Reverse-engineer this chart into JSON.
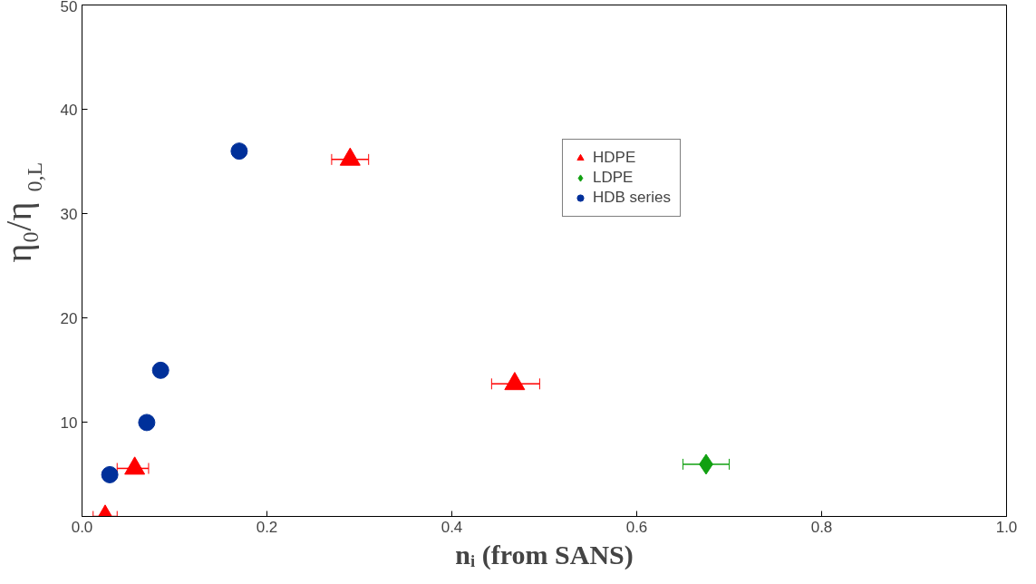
{
  "chart_data": {
    "type": "scatter",
    "xlabel": "nᵢ (from SANS)",
    "ylabel": "η₀/η$_{0,L}$",
    "xlim": [
      0,
      1
    ],
    "ylim": [
      1,
      50
    ],
    "xticks": [
      {
        "value": 0,
        "label": "0.0"
      },
      0.2,
      0.4,
      0.6,
      0.8,
      {
        "value": 1,
        "label": "1.0"
      }
    ],
    "yticks": [
      10,
      20,
      30,
      40,
      50
    ],
    "grid": false,
    "legend": "top right",
    "series": [
      {
        "name": "HDPE",
        "color": "#ff0000",
        "marker": "triangle",
        "x": [
          0.025,
          0.057,
          0.29,
          0.468
        ],
        "values": [
          1.0,
          5.6,
          35.2,
          13.7
        ],
        "xerrors": [
          [
            0.012,
            0.038
          ],
          [
            0.038,
            0.072
          ],
          [
            0.27,
            0.31
          ],
          [
            0.443,
            0.495
          ]
        ]
      },
      {
        "name": "LDPE",
        "color": "#11a011",
        "marker": "diamond",
        "x": [
          0.675
        ],
        "values": [
          6.0
        ],
        "xerrors": [
          [
            0.65,
            0.7
          ]
        ]
      },
      {
        "name": "HDB series",
        "color": "#00309a",
        "marker": "circle",
        "x": [
          0.03,
          0.07,
          0.085,
          0.17
        ],
        "values": [
          5.0,
          10.0,
          15.0,
          36.0
        ]
      }
    ]
  }
}
